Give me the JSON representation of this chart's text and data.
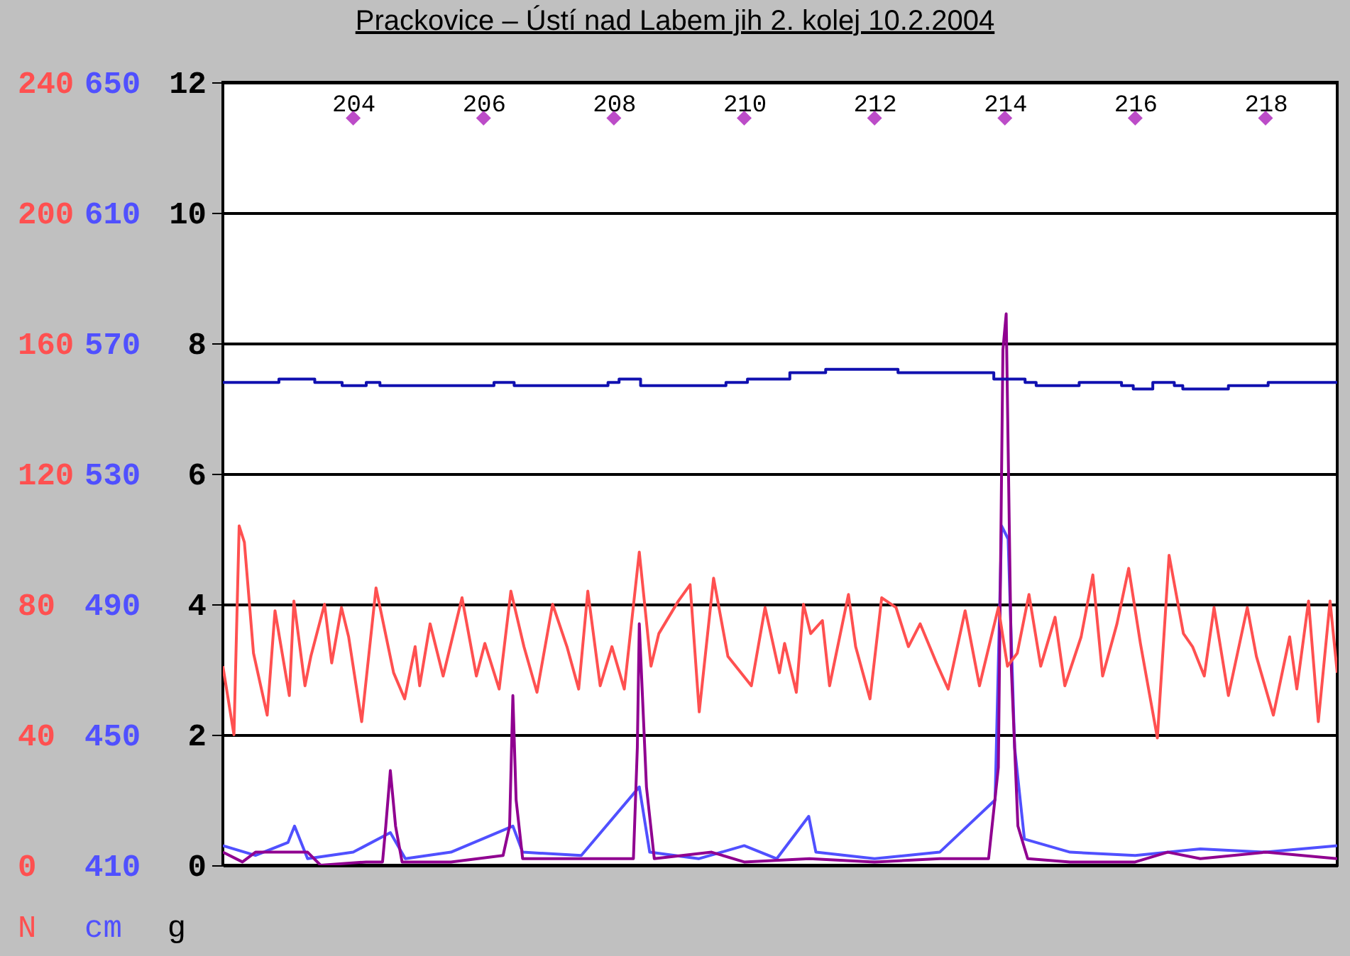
{
  "chart_data": {
    "type": "line",
    "title": "Prackovice – Ústí nad Labem jih 2. kolej 10.2.2004",
    "ylabel": "g",
    "y2label": "N",
    "y3label": "cm",
    "xlim": [
      202,
      219.1
    ],
    "xticks": [
      204,
      206,
      208,
      210,
      212,
      214,
      216,
      218
    ],
    "ylim": [
      0,
      12
    ],
    "yticks": [
      0,
      2,
      4,
      6,
      8,
      10,
      12
    ],
    "y2lim": [
      0,
      240
    ],
    "y2ticks": [
      0,
      40,
      80,
      120,
      160,
      200,
      240
    ],
    "y3lim": [
      410,
      650
    ],
    "y3ticks": [
      410,
      450,
      490,
      530,
      570,
      610,
      650
    ],
    "grid": "y",
    "series": [
      {
        "type": "line",
        "axis": "y2",
        "color": "#ff5050",
        "x": [
          202.0,
          202.17,
          202.25,
          202.33,
          202.47,
          202.68,
          202.8,
          203.02,
          203.09,
          203.26,
          203.35,
          203.56,
          203.67,
          203.82,
          203.93,
          204.13,
          204.35,
          204.62,
          204.79,
          204.95,
          205.02,
          205.18,
          205.38,
          205.67,
          205.89,
          206.02,
          206.24,
          206.42,
          206.62,
          206.82,
          207.06,
          207.28,
          207.46,
          207.6,
          207.79,
          207.97,
          208.16,
          208.39,
          208.57,
          208.69,
          208.99,
          209.17,
          209.31,
          209.53,
          209.75,
          210.11,
          210.32,
          210.54,
          210.62,
          210.8,
          210.91,
          211.02,
          211.2,
          211.31,
          211.6,
          211.71,
          211.93,
          212.11,
          212.33,
          212.52,
          212.7,
          212.95,
          213.13,
          213.39,
          213.61,
          213.9,
          214.04,
          214.19,
          214.37,
          214.55,
          214.77,
          214.92,
          215.17,
          215.35,
          215.5,
          215.72,
          215.9,
          216.08,
          216.34,
          216.52,
          216.74,
          216.88,
          217.06,
          217.21,
          217.43,
          217.72,
          217.86,
          218.12,
          218.37,
          218.48,
          218.66,
          218.81,
          218.99,
          219.1
        ],
        "values": [
          61,
          40,
          104,
          99,
          65,
          46,
          78,
          52,
          81,
          55,
          64,
          80,
          62,
          79,
          70,
          44,
          85,
          59,
          51,
          67,
          55,
          74,
          58,
          82,
          58,
          68,
          54,
          84,
          67,
          53,
          80,
          67,
          54,
          84,
          55,
          67,
          54,
          96,
          61,
          71,
          81,
          86,
          47,
          88,
          64,
          55,
          79,
          59,
          68,
          53,
          80,
          71,
          75,
          55,
          83,
          67,
          51,
          82,
          79,
          67,
          74,
          62,
          54,
          78,
          55,
          79,
          61,
          65,
          83,
          61,
          76,
          55,
          70,
          89,
          58,
          74,
          91,
          68,
          39,
          95,
          71,
          67,
          58,
          79,
          52,
          79,
          64,
          46,
          70,
          54,
          81,
          44,
          81,
          59
        ]
      },
      {
        "type": "step",
        "axis": "y3",
        "color": "#1010b0",
        "x": [
          202.0,
          202.86,
          203.41,
          203.83,
          204.2,
          204.41,
          206.16,
          206.47,
          207.91,
          208.08,
          208.41,
          209.72,
          210.05,
          210.7,
          211.25,
          212.36,
          213.83,
          214.31,
          214.48,
          215.14,
          215.79,
          215.97,
          216.27,
          216.6,
          216.73,
          217.43,
          218.04,
          219.1
        ],
        "values": [
          558,
          559,
          558,
          557,
          558,
          557,
          558,
          557,
          558,
          559,
          557,
          558,
          559,
          561,
          562,
          561,
          559,
          558,
          557,
          558,
          557,
          556,
          558,
          557,
          556,
          557,
          558,
          558
        ]
      },
      {
        "type": "line",
        "axis": "y",
        "color": "#5050ff",
        "x": [
          202.0,
          202.5,
          203.0,
          203.1,
          203.3,
          204.0,
          204.57,
          204.8,
          205.5,
          206.45,
          206.6,
          207.5,
          208.39,
          208.55,
          209.3,
          210.0,
          210.5,
          210.99,
          211.1,
          212.0,
          213.0,
          213.85,
          213.95,
          214.05,
          214.15,
          214.3,
          215.0,
          216.0,
          217.0,
          218.0,
          219.1
        ],
        "values": [
          0.3,
          0.15,
          0.35,
          0.6,
          0.1,
          0.2,
          0.5,
          0.1,
          0.2,
          0.6,
          0.2,
          0.15,
          1.2,
          0.2,
          0.1,
          0.3,
          0.1,
          0.75,
          0.2,
          0.1,
          0.2,
          1.0,
          5.2,
          5.0,
          1.8,
          0.4,
          0.2,
          0.15,
          0.25,
          0.2,
          0.3
        ]
      },
      {
        "type": "line",
        "axis": "y",
        "color": "#900090",
        "x": [
          202.0,
          202.3,
          202.5,
          203.3,
          203.5,
          204.2,
          204.45,
          204.5,
          204.57,
          204.65,
          204.75,
          205.5,
          206.3,
          206.4,
          206.45,
          206.5,
          206.6,
          207.5,
          208.3,
          208.36,
          208.39,
          208.5,
          208.62,
          209.5,
          210.0,
          211.0,
          212.0,
          213.0,
          213.75,
          213.9,
          213.97,
          214.02,
          214.1,
          214.2,
          214.35,
          215.0,
          216.0,
          216.5,
          217.0,
          218.0,
          219.1
        ],
        "values": [
          0.2,
          0.05,
          0.2,
          0.2,
          0.0,
          0.05,
          0.05,
          0.6,
          1.45,
          0.6,
          0.05,
          0.05,
          0.15,
          0.6,
          2.6,
          1.0,
          0.1,
          0.1,
          0.1,
          1.8,
          3.7,
          1.2,
          0.1,
          0.2,
          0.05,
          0.1,
          0.05,
          0.1,
          0.1,
          1.5,
          7.9,
          8.45,
          3.0,
          0.6,
          0.1,
          0.05,
          0.05,
          0.2,
          0.1,
          0.2,
          0.1
        ]
      },
      {
        "type": "scatter",
        "axis": "y",
        "marker": "diamond",
        "color": "#a000b0",
        "x": [
          204,
          206,
          208,
          210,
          212,
          214,
          216,
          218
        ],
        "values": [
          11.45,
          11.45,
          11.45,
          11.45,
          11.45,
          11.45,
          11.45,
          11.45
        ]
      }
    ]
  }
}
